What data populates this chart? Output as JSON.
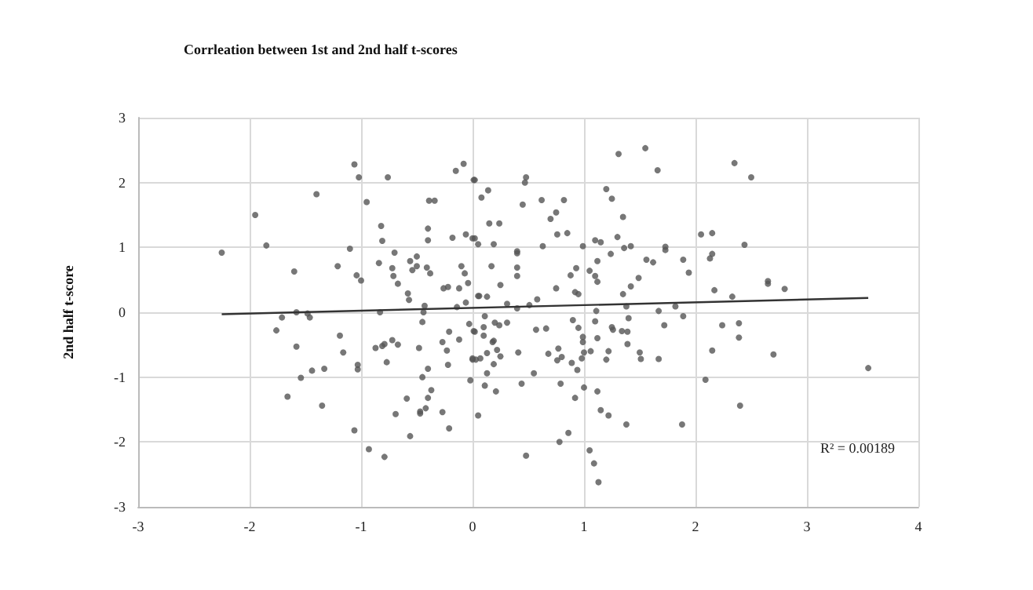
{
  "chart_data": {
    "type": "scatter",
    "title": "Corrleation between 1st and 2nd half t-scores",
    "ylabel": "2nd half t-score",
    "annotations": [
      "R² = 0.00189"
    ],
    "xlim": [
      -3,
      4
    ],
    "xticks": [
      -3,
      -2,
      -1,
      0,
      1,
      2,
      3,
      4
    ],
    "ylim": [
      -3,
      3
    ],
    "yticks": [
      -3,
      -2,
      -1,
      0,
      1,
      2,
      3
    ],
    "grid": true,
    "marker": "circle",
    "series": [
      {
        "color": "#555555",
        "x": [
          -2.25,
          -1.95,
          -1.85,
          -1.4,
          -1.6,
          -1.21,
          -1.1,
          -1.06,
          -1.02,
          -1.04,
          -1.0,
          -0.95,
          -0.76,
          -0.82,
          -0.81,
          -0.7,
          -0.84,
          -0.72,
          -0.71,
          -0.67,
          -0.58,
          -0.57,
          -0.43,
          -0.56,
          -0.5,
          -0.5,
          -0.54,
          -0.41,
          -0.38,
          -0.39,
          -0.34,
          -0.4,
          -0.4,
          -0.26,
          -0.22,
          -0.18,
          -0.15,
          -0.08,
          0.01,
          -0.1,
          -0.07,
          -0.06,
          -0.04,
          0.0,
          -0.12,
          -0.14,
          -0.06,
          0.05,
          0.02,
          0.08,
          0.14,
          0.15,
          0.24,
          0.19,
          0.05,
          0.02,
          0.17,
          0.25,
          0.06,
          0.13,
          0.31,
          0.4,
          0.48,
          0.47,
          0.45,
          0.4,
          0.4,
          0.4,
          0.4,
          0.62,
          0.7,
          0.75,
          0.82,
          0.76,
          0.85,
          0.63,
          0.75,
          0.58,
          0.51,
          0.88,
          0.93,
          0.92,
          0.95,
          0.99,
          1.05,
          1.1,
          1.12,
          1.12,
          1.1,
          1.15,
          1.31,
          1.2,
          1.25,
          1.35,
          1.3,
          1.24,
          1.36,
          1.42,
          1.35,
          1.42,
          1.49,
          1.56,
          1.62,
          1.55,
          1.66,
          1.73,
          1.73,
          1.89,
          1.94,
          1.82,
          2.05,
          2.15,
          2.13,
          2.15,
          2.17,
          2.33,
          2.35,
          2.5,
          2.44,
          2.65,
          2.65,
          2.8,
          1.38,
          -1.76,
          -1.71,
          -1.58,
          -1.48,
          -1.46,
          -1.58,
          -1.54,
          -1.44,
          -1.33,
          -1.66,
          -1.35,
          -1.19,
          -1.16,
          -1.03,
          -1.03,
          -1.06,
          -0.93,
          -0.79,
          -0.87,
          -0.81,
          -0.79,
          -0.72,
          -0.67,
          -0.77,
          -0.83,
          -0.69,
          -0.59,
          -0.56,
          -0.48,
          -0.45,
          -0.44,
          -0.45,
          -0.4,
          -0.37,
          -0.4,
          -0.42,
          -0.47,
          -0.47,
          -0.27,
          -0.21,
          -0.21,
          -0.27,
          -0.23,
          -0.22,
          -0.12,
          -0.03,
          0.02,
          0.0,
          0.03,
          -0.02,
          0.05,
          0.01,
          0.11,
          0.1,
          0.1,
          0.2,
          0.24,
          0.31,
          0.18,
          0.19,
          0.22,
          0.25,
          0.13,
          0.07,
          0.0,
          0.19,
          0.13,
          0.11,
          0.21,
          0.41,
          0.44,
          0.55,
          0.48,
          0.57,
          0.66,
          0.68,
          0.76,
          0.77,
          0.8,
          0.89,
          0.79,
          0.9,
          0.95,
          0.94,
          0.92,
          0.86,
          0.78,
          0.98,
          0.99,
          0.99,
          1.0,
          1.0,
          1.06,
          1.12,
          1.1,
          1.11,
          1.12,
          1.15,
          1.22,
          1.05,
          1.09,
          1.13,
          1.25,
          1.26,
          1.2,
          1.22,
          1.34,
          1.4,
          1.39,
          1.39,
          1.5,
          1.51,
          1.38,
          1.67,
          1.72,
          1.67,
          1.89,
          1.88,
          2.09,
          2.15,
          2.24,
          2.39,
          2.39,
          2.4,
          2.7,
          3.55
        ],
        "values": [
          0.92,
          1.5,
          1.03,
          1.82,
          0.63,
          0.71,
          0.98,
          2.28,
          2.08,
          0.57,
          0.49,
          1.7,
          2.08,
          1.33,
          1.1,
          0.92,
          0.76,
          0.68,
          0.56,
          0.44,
          0.29,
          0.19,
          0.1,
          0.79,
          0.86,
          0.71,
          0.65,
          0.69,
          0.6,
          1.72,
          1.72,
          1.29,
          1.11,
          0.37,
          0.39,
          1.15,
          2.18,
          2.29,
          2.04,
          0.71,
          0.6,
          1.2,
          0.45,
          1.14,
          0.37,
          0.08,
          0.15,
          0.25,
          2.04,
          1.77,
          1.88,
          1.37,
          1.37,
          1.05,
          1.05,
          1.14,
          0.71,
          0.42,
          0.25,
          0.24,
          0.13,
          0.06,
          2.08,
          2.0,
          1.66,
          0.91,
          0.94,
          0.69,
          0.56,
          1.73,
          1.44,
          1.54,
          1.73,
          1.2,
          1.22,
          1.02,
          0.37,
          0.2,
          0.11,
          0.57,
          0.68,
          0.31,
          0.28,
          1.02,
          0.64,
          0.56,
          0.47,
          0.79,
          1.11,
          1.08,
          2.44,
          1.9,
          1.75,
          1.47,
          1.16,
          0.9,
          0.99,
          1.02,
          0.28,
          0.4,
          0.53,
          0.81,
          0.77,
          2.53,
          2.19,
          1.01,
          0.96,
          0.81,
          0.61,
          0.09,
          1.2,
          1.22,
          0.83,
          0.9,
          0.34,
          0.24,
          2.3,
          2.08,
          1.04,
          0.48,
          0.44,
          0.36,
          0.09,
          -0.28,
          -0.08,
          0.0,
          -0.02,
          -0.08,
          -0.53,
          -1.01,
          -0.9,
          -0.87,
          -1.3,
          -1.44,
          -0.36,
          -0.62,
          -0.81,
          -0.88,
          -1.82,
          -2.11,
          -2.23,
          -0.55,
          -0.52,
          -0.49,
          -0.43,
          -0.5,
          -0.77,
          0.0,
          -1.57,
          -1.33,
          -1.91,
          -0.55,
          -0.15,
          0.0,
          -1.0,
          -0.87,
          -1.2,
          -1.32,
          -1.48,
          -1.53,
          -1.56,
          -1.54,
          -1.79,
          -0.3,
          -0.46,
          -0.59,
          -0.81,
          -0.42,
          -0.18,
          -0.3,
          -0.73,
          -0.73,
          -1.05,
          -1.59,
          -0.29,
          -0.06,
          -0.23,
          -0.36,
          -0.16,
          -0.2,
          -0.16,
          -0.46,
          -0.44,
          -0.58,
          -0.68,
          -0.63,
          -0.71,
          -0.71,
          -0.8,
          -0.94,
          -1.13,
          -1.22,
          -0.62,
          -1.1,
          -0.94,
          -2.21,
          -0.27,
          -0.25,
          -0.64,
          -0.74,
          -0.56,
          -0.69,
          -0.78,
          -1.1,
          -0.12,
          -0.24,
          -0.89,
          -1.32,
          -1.86,
          -2.0,
          -0.71,
          -0.38,
          -0.46,
          -0.62,
          -1.16,
          -0.6,
          -0.4,
          -0.14,
          0.02,
          -1.22,
          -1.51,
          -1.59,
          -2.13,
          -2.33,
          -2.62,
          -0.23,
          -0.27,
          -0.73,
          -0.6,
          -0.29,
          -0.09,
          -0.3,
          -0.49,
          -0.62,
          -0.72,
          -1.73,
          -0.72,
          -0.2,
          0.02,
          -0.06,
          -1.73,
          -1.04,
          -0.59,
          -0.2,
          -0.17,
          -0.39,
          -1.44,
          -0.65,
          -0.86
        ]
      },
      {
        "type": "line",
        "marker": "none",
        "color": "#333333",
        "x": [
          -2.25,
          3.55
        ],
        "values": [
          -0.03,
          0.22
        ]
      }
    ]
  }
}
